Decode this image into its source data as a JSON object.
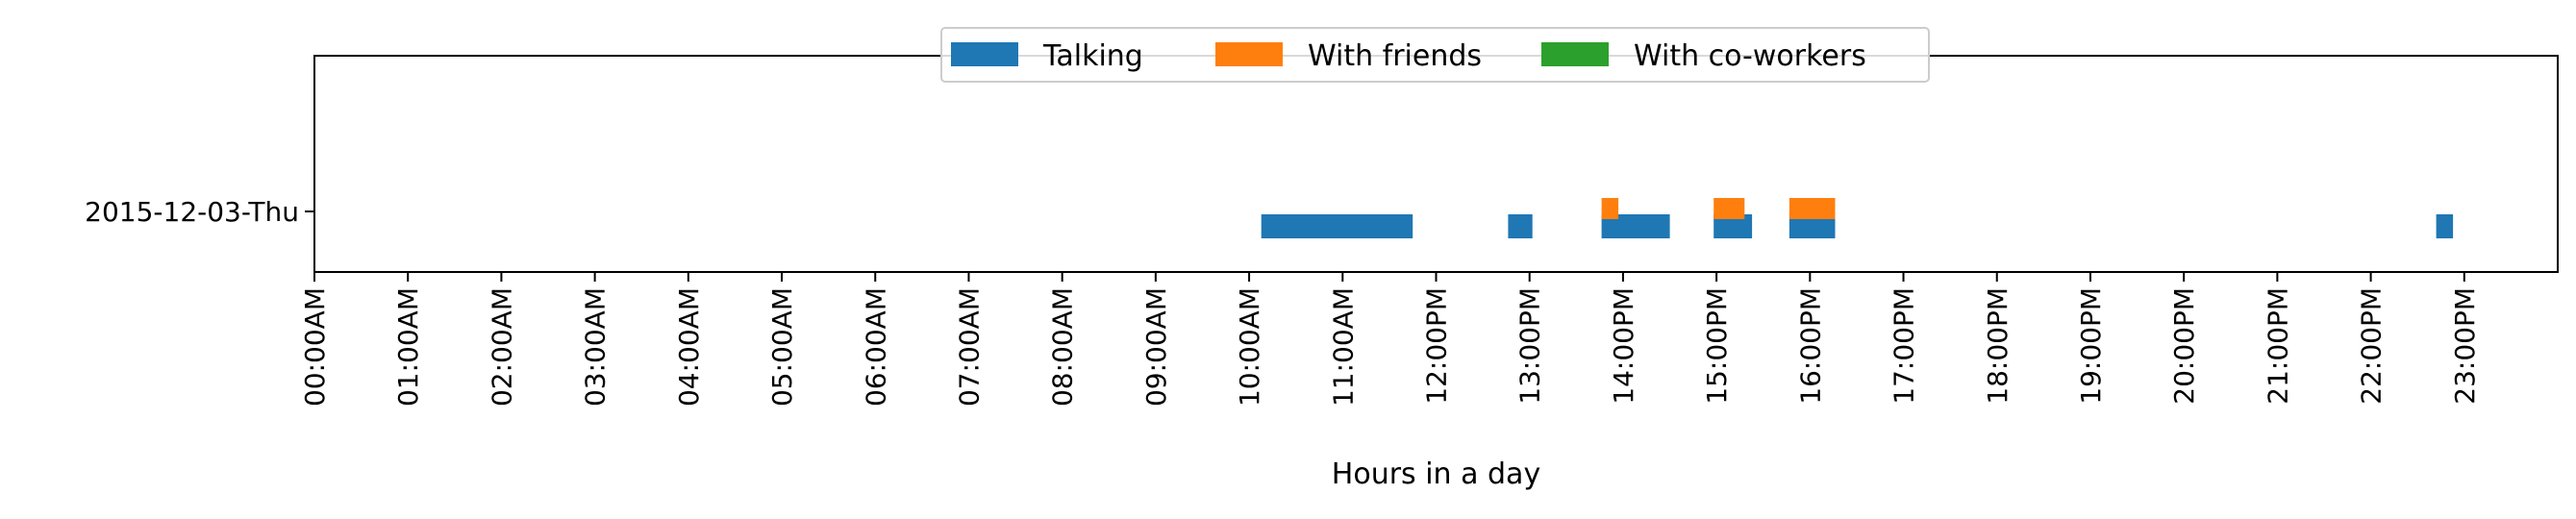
{
  "chart_data": {
    "type": "timeline",
    "title": "",
    "xlabel": "Hours in a day",
    "ylabel": "",
    "xlim": [
      0,
      24
    ],
    "x_ticks": [
      {
        "value": 0,
        "label": "00:00AM"
      },
      {
        "value": 1,
        "label": "01:00AM"
      },
      {
        "value": 2,
        "label": "02:00AM"
      },
      {
        "value": 3,
        "label": "03:00AM"
      },
      {
        "value": 4,
        "label": "04:00AM"
      },
      {
        "value": 5,
        "label": "05:00AM"
      },
      {
        "value": 6,
        "label": "06:00AM"
      },
      {
        "value": 7,
        "label": "07:00AM"
      },
      {
        "value": 8,
        "label": "08:00AM"
      },
      {
        "value": 9,
        "label": "09:00AM"
      },
      {
        "value": 10,
        "label": "10:00AM"
      },
      {
        "value": 11,
        "label": "11:00AM"
      },
      {
        "value": 12,
        "label": "12:00PM"
      },
      {
        "value": 13,
        "label": "13:00PM"
      },
      {
        "value": 14,
        "label": "14:00PM"
      },
      {
        "value": 15,
        "label": "15:00PM"
      },
      {
        "value": 16,
        "label": "16:00PM"
      },
      {
        "value": 17,
        "label": "17:00PM"
      },
      {
        "value": 18,
        "label": "18:00PM"
      },
      {
        "value": 19,
        "label": "19:00PM"
      },
      {
        "value": 20,
        "label": "20:00PM"
      },
      {
        "value": 21,
        "label": "21:00PM"
      },
      {
        "value": 22,
        "label": "22:00PM"
      },
      {
        "value": 23,
        "label": "23:00PM"
      }
    ],
    "categories": [
      "2015-12-03-Thu"
    ],
    "legend": {
      "placement": "top-center",
      "ncol": 3
    },
    "series": [
      {
        "name": "Talking",
        "color": "#1f77b4",
        "intervals": [
          {
            "category": "2015-12-03-Thu",
            "start": 10.13,
            "end": 11.75
          },
          {
            "category": "2015-12-03-Thu",
            "start": 12.77,
            "end": 13.03
          },
          {
            "category": "2015-12-03-Thu",
            "start": 13.77,
            "end": 14.5
          },
          {
            "category": "2015-12-03-Thu",
            "start": 14.97,
            "end": 15.38
          },
          {
            "category": "2015-12-03-Thu",
            "start": 15.78,
            "end": 16.27
          },
          {
            "category": "2015-12-03-Thu",
            "start": 22.7,
            "end": 22.88
          }
        ]
      },
      {
        "name": "With friends",
        "color": "#ff7f0e",
        "intervals": [
          {
            "category": "2015-12-03-Thu",
            "start": 13.77,
            "end": 13.95
          },
          {
            "category": "2015-12-03-Thu",
            "start": 14.97,
            "end": 15.3
          },
          {
            "category": "2015-12-03-Thu",
            "start": 15.78,
            "end": 16.27
          }
        ]
      },
      {
        "name": "With co-workers",
        "color": "#2ca02c",
        "intervals": []
      }
    ]
  }
}
